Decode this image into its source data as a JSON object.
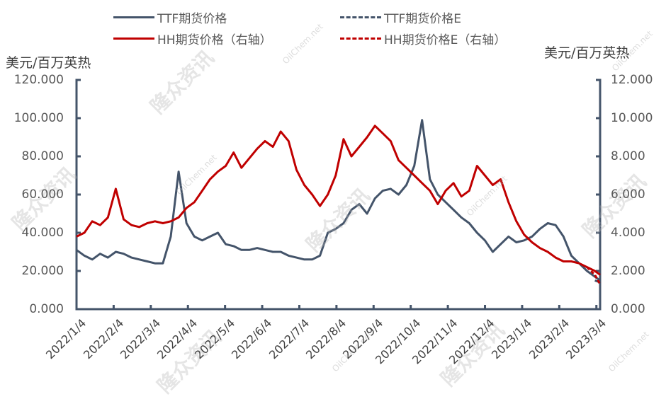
{
  "legend": {
    "items": [
      {
        "label": "TTF期货价格",
        "color": "#44546A",
        "style": "solid"
      },
      {
        "label": "TTF期货价格E",
        "color": "#44546A",
        "style": "dashed"
      },
      {
        "label": "HH期货价格（右轴）",
        "color": "#C00000",
        "style": "solid"
      },
      {
        "label": "HH期货价格E（右轴）",
        "color": "#C00000",
        "style": "dashed"
      }
    ]
  },
  "axes": {
    "left_unit": "美元/百万英热",
    "right_unit": "美元/百万英热",
    "left_ticks": [
      "120.000",
      "100.000",
      "80.000",
      "60.000",
      "40.000",
      "20.000",
      "0.000"
    ],
    "right_ticks": [
      "12.000",
      "10.000",
      "8.000",
      "6.000",
      "4.000",
      "2.000",
      "0.000"
    ],
    "x_ticks": [
      "2022/1/4",
      "2022/2/4",
      "2022/3/4",
      "2022/4/4",
      "2022/5/4",
      "2022/6/4",
      "2022/7/4",
      "2022/8/4",
      "2022/9/4",
      "2022/10/4",
      "2022/11/4",
      "2022/12/4",
      "2023/1/4",
      "2023/2/4",
      "2023/3/4"
    ]
  },
  "watermark": {
    "text": "隆众资讯",
    "site": "OilChem.net"
  },
  "colors": {
    "ttf": "#44546A",
    "hh": "#C00000",
    "axis": "#44546A"
  },
  "chart_data": {
    "type": "line",
    "title": "",
    "xlabel": "",
    "ylabel": "美元/百万英热",
    "ylabel_right": "美元/百万英热",
    "ylim": [
      0,
      120
    ],
    "ylim_right": [
      0,
      12
    ],
    "grid": false,
    "legend_position": "top",
    "categories": [
      "2022/1/4",
      "2022/2/4",
      "2022/3/4",
      "2022/4/4",
      "2022/5/4",
      "2022/6/4",
      "2022/7/4",
      "2022/8/4",
      "2022/9/4",
      "2022/10/4",
      "2022/11/4",
      "2022/12/4",
      "2023/1/4",
      "2023/2/4",
      "2023/3/4"
    ],
    "x_relative": [
      0,
      0.015,
      0.03,
      0.045,
      0.06,
      0.075,
      0.09,
      0.105,
      0.12,
      0.135,
      0.15,
      0.165,
      0.18,
      0.195,
      0.21,
      0.225,
      0.24,
      0.255,
      0.27,
      0.285,
      0.3,
      0.315,
      0.33,
      0.345,
      0.36,
      0.375,
      0.39,
      0.405,
      0.42,
      0.435,
      0.45,
      0.465,
      0.48,
      0.495,
      0.51,
      0.525,
      0.54,
      0.555,
      0.57,
      0.585,
      0.6,
      0.615,
      0.63,
      0.645,
      0.66,
      0.675,
      0.69,
      0.705,
      0.72,
      0.735,
      0.75,
      0.765,
      0.78,
      0.795,
      0.81,
      0.825,
      0.84,
      0.855,
      0.87,
      0.885,
      0.9,
      0.915,
      0.93,
      0.945,
      0.96,
      0.975,
      0.99,
      1.0
    ],
    "series": [
      {
        "name": "TTF期货价格",
        "axis": "left",
        "style": "solid",
        "values": [
          31,
          28,
          26,
          29,
          27,
          30,
          29,
          27,
          26,
          25,
          24,
          24,
          38,
          72,
          45,
          38,
          36,
          38,
          40,
          34,
          33,
          31,
          31,
          32,
          31,
          30,
          30,
          28,
          27,
          26,
          26,
          28,
          40,
          42,
          45,
          52,
          55,
          50,
          58,
          62,
          63,
          60,
          65,
          75,
          99,
          68,
          60,
          56,
          52,
          48,
          45,
          40,
          36,
          30,
          34,
          38,
          35,
          36,
          38,
          42,
          45,
          44,
          38,
          28,
          24,
          20,
          17,
          15
        ]
      },
      {
        "name": "TTF期货价格E",
        "axis": "left",
        "style": "dashed",
        "values": [
          null,
          null,
          null,
          null,
          null,
          null,
          null,
          null,
          null,
          null,
          null,
          null,
          null,
          null,
          null,
          null,
          null,
          null,
          null,
          null,
          null,
          null,
          null,
          null,
          null,
          null,
          null,
          null,
          null,
          null,
          null,
          null,
          null,
          null,
          null,
          null,
          null,
          null,
          null,
          null,
          null,
          null,
          null,
          null,
          null,
          null,
          null,
          null,
          null,
          null,
          null,
          null,
          null,
          null,
          null,
          null,
          null,
          null,
          null,
          null,
          null,
          null,
          null,
          null,
          null,
          null,
          15,
          14
        ]
      },
      {
        "name": "HH期货价格（右轴）",
        "axis": "right",
        "style": "solid",
        "values": [
          3.8,
          4.0,
          4.6,
          4.4,
          4.8,
          6.3,
          4.7,
          4.4,
          4.3,
          4.5,
          4.6,
          4.5,
          4.6,
          4.8,
          5.3,
          5.6,
          6.2,
          6.8,
          7.2,
          7.5,
          8.2,
          7.4,
          7.9,
          8.4,
          8.8,
          8.5,
          9.3,
          8.8,
          7.3,
          6.5,
          6.0,
          5.4,
          6.0,
          7.0,
          8.9,
          8.0,
          8.5,
          9.0,
          9.6,
          9.2,
          8.8,
          7.8,
          7.4,
          7.0,
          6.6,
          6.2,
          5.5,
          6.2,
          6.6,
          5.9,
          6.2,
          7.5,
          7.0,
          6.5,
          6.8,
          5.6,
          4.6,
          3.9,
          3.5,
          3.2,
          3.0,
          2.7,
          2.5,
          2.5,
          2.4,
          2.2,
          2.0,
          1.8
        ]
      },
      {
        "name": "HH期货价格E（右轴）",
        "axis": "right",
        "style": "dashed",
        "values": [
          null,
          null,
          null,
          null,
          null,
          null,
          null,
          null,
          null,
          null,
          null,
          null,
          null,
          null,
          null,
          null,
          null,
          null,
          null,
          null,
          null,
          null,
          null,
          null,
          null,
          null,
          null,
          null,
          null,
          null,
          null,
          null,
          null,
          null,
          null,
          null,
          null,
          null,
          null,
          null,
          null,
          null,
          null,
          null,
          null,
          null,
          null,
          null,
          null,
          null,
          null,
          null,
          null,
          null,
          null,
          null,
          null,
          null,
          null,
          null,
          null,
          null,
          null,
          null,
          null,
          2.2,
          1.8,
          1.3
        ]
      }
    ]
  }
}
